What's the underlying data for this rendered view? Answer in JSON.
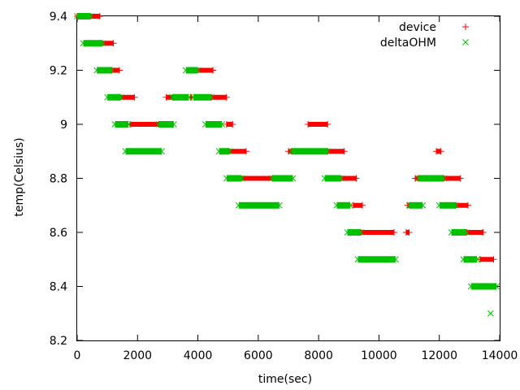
{
  "chart_data": {
    "type": "scatter",
    "title": "",
    "xlabel": "time(sec)",
    "ylabel": "temp(Celsius)",
    "xlim": [
      0,
      14000
    ],
    "ylim": [
      8.2,
      9.4
    ],
    "x_ticks": [
      0,
      2000,
      4000,
      6000,
      8000,
      10000,
      12000,
      14000
    ],
    "y_ticks": [
      8.2,
      8.4,
      8.6,
      8.8,
      9.0,
      9.2,
      9.4
    ],
    "x_tick_labels": [
      "0",
      "2000",
      "4000",
      "6000",
      "8000",
      "10000",
      "12000",
      "14000"
    ],
    "y_tick_labels": [
      "8.2",
      "8.4",
      "8.6",
      "8.8",
      "9",
      "9.2",
      "9.4"
    ],
    "grid": false,
    "legend_position": "top-right",
    "series": [
      {
        "name": "device",
        "marker": "+",
        "color": "#ff0000",
        "segments": [
          {
            "y": 9.4,
            "x": [
              0,
              750
            ]
          },
          {
            "y": 9.3,
            "x": [
              750,
              1200
            ]
          },
          {
            "y": 9.2,
            "x": [
              1150,
              1400
            ]
          },
          {
            "y": 9.1,
            "x": [
              1400,
              1900
            ]
          },
          {
            "y": 9.1,
            "x": [
              2950,
              3200
            ]
          },
          {
            "y": 9.1,
            "x": [
              3750,
              3800
            ]
          },
          {
            "y": 9.1,
            "x": [
              4450,
              4950
            ]
          },
          {
            "y": 9.2,
            "x": [
              3950,
              4500
            ]
          },
          {
            "y": 9.0,
            "x": [
              1750,
              2700
            ]
          },
          {
            "y": 9.0,
            "x": [
              4950,
              5150
            ]
          },
          {
            "y": 9.0,
            "x": [
              7650,
              8300
            ]
          },
          {
            "y": 8.9,
            "x": [
              5000,
              5600
            ]
          },
          {
            "y": 8.9,
            "x": [
              7000,
              7100
            ]
          },
          {
            "y": 8.9,
            "x": [
              8300,
              8850
            ]
          },
          {
            "y": 8.9,
            "x": [
              11900,
              12050
            ]
          },
          {
            "y": 8.8,
            "x": [
              5400,
              6500
            ]
          },
          {
            "y": 8.8,
            "x": [
              8700,
              9250
            ]
          },
          {
            "y": 8.8,
            "x": [
              11200,
              11300
            ]
          },
          {
            "y": 8.8,
            "x": [
              12150,
              12700
            ]
          },
          {
            "y": 8.7,
            "x": [
              9150,
              9450
            ]
          },
          {
            "y": 8.7,
            "x": [
              10950,
              11050
            ]
          },
          {
            "y": 8.7,
            "x": [
              12550,
              12950
            ]
          },
          {
            "y": 8.6,
            "x": [
              9400,
              10500
            ]
          },
          {
            "y": 8.6,
            "x": [
              10900,
              11000
            ]
          },
          {
            "y": 8.6,
            "x": [
              12900,
              13450
            ]
          },
          {
            "y": 8.5,
            "x": [
              13350,
              13800
            ]
          }
        ]
      },
      {
        "name": "deltaOHM",
        "marker": "x",
        "color": "#00c000",
        "segments": [
          {
            "y": 9.4,
            "x": [
              0,
              450
            ]
          },
          {
            "y": 9.3,
            "x": [
              200,
              850
            ]
          },
          {
            "y": 9.2,
            "x": [
              650,
              1150
            ]
          },
          {
            "y": 9.1,
            "x": [
              1000,
              1450
            ]
          },
          {
            "y": 9.1,
            "x": [
              3150,
              3700
            ]
          },
          {
            "y": 9.1,
            "x": [
              3850,
              4450
            ]
          },
          {
            "y": 9.2,
            "x": [
              3600,
              4000
            ]
          },
          {
            "y": 9.0,
            "x": [
              1250,
              1700
            ]
          },
          {
            "y": 9.0,
            "x": [
              2700,
              3200
            ]
          },
          {
            "y": 9.0,
            "x": [
              4250,
              4800
            ]
          },
          {
            "y": 8.9,
            "x": [
              1600,
              2800
            ]
          },
          {
            "y": 8.9,
            "x": [
              4700,
              5050
            ]
          },
          {
            "y": 8.9,
            "x": [
              7100,
              8300
            ]
          },
          {
            "y": 8.8,
            "x": [
              4950,
              5450
            ]
          },
          {
            "y": 8.8,
            "x": [
              6450,
              7150
            ]
          },
          {
            "y": 8.8,
            "x": [
              8200,
              8750
            ]
          },
          {
            "y": 8.8,
            "x": [
              11300,
              12150
            ]
          },
          {
            "y": 8.7,
            "x": [
              5350,
              6700
            ]
          },
          {
            "y": 8.7,
            "x": [
              8600,
              9050
            ]
          },
          {
            "y": 8.7,
            "x": [
              11000,
              11450
            ]
          },
          {
            "y": 8.7,
            "x": [
              12000,
              12550
            ]
          },
          {
            "y": 8.6,
            "x": [
              8950,
              9400
            ]
          },
          {
            "y": 8.6,
            "x": [
              12400,
              12900
            ]
          },
          {
            "y": 8.5,
            "x": [
              9300,
              10550
            ]
          },
          {
            "y": 8.5,
            "x": [
              12800,
              13250
            ]
          },
          {
            "y": 8.4,
            "x": [
              13050,
              13900
            ]
          },
          {
            "y": 8.3,
            "x": [
              13700,
              13700
            ]
          }
        ]
      }
    ]
  }
}
